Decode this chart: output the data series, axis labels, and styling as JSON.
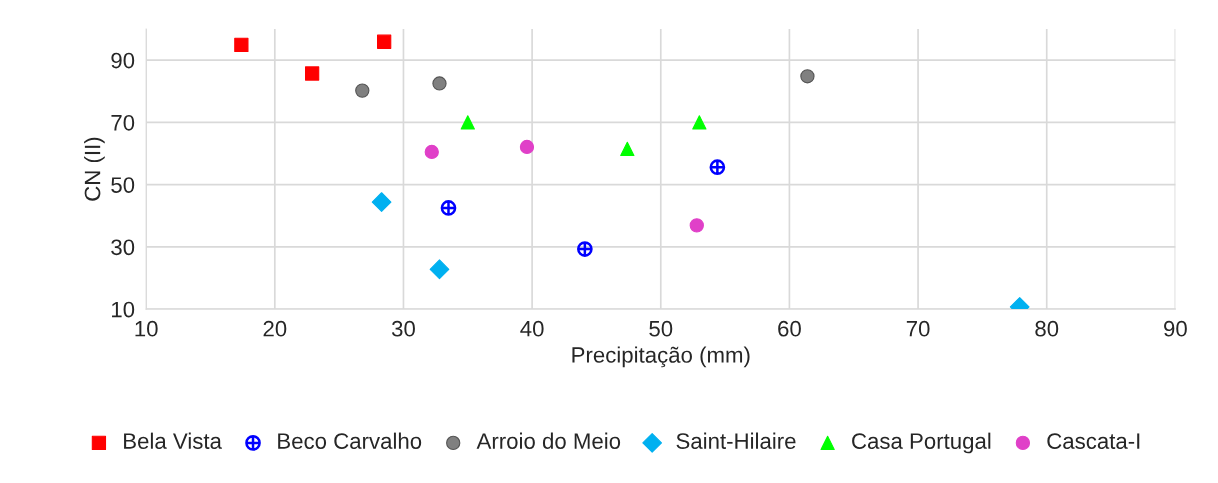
{
  "chart_data": {
    "type": "scatter",
    "xlabel": "Precipitação (mm)",
    "ylabel": "CN (II)",
    "xlim": [
      10,
      90
    ],
    "xticks": [
      10,
      20,
      30,
      40,
      50,
      60,
      70,
      80,
      90
    ],
    "ylim": [
      10,
      100
    ],
    "yticks": [
      10,
      30,
      50,
      70,
      90
    ],
    "grid": true,
    "legend": "bottom",
    "series": [
      {
        "name": "Bela Vista",
        "color": "#ff0000",
        "marker": "square",
        "x": [
          17.4,
          22.9,
          28.5
        ],
        "values": [
          94.9,
          85.7,
          95.9
        ]
      },
      {
        "name": "Beco Carvalho",
        "color": "#0000ff",
        "marker": "cross",
        "x": [
          33.5,
          44.1,
          54.4
        ],
        "values": [
          42.5,
          29.3,
          55.6
        ]
      },
      {
        "name": "Arroio do Meio",
        "color": "#808080",
        "marker": "circle",
        "x": [
          26.8,
          32.8,
          61.4
        ],
        "values": [
          80.2,
          82.5,
          84.8
        ]
      },
      {
        "name": "Saint-Hilaire",
        "color": "#00b0f0",
        "marker": "diamond",
        "x": [
          28.3,
          32.8,
          77.9
        ],
        "values": [
          44.4,
          22.8,
          10.7
        ]
      },
      {
        "name": "Casa Portugal",
        "color": "#00ff00",
        "marker": "triangle",
        "x": [
          35.0,
          47.4,
          53.0
        ],
        "values": [
          70.0,
          61.5,
          70.0
        ]
      },
      {
        "name": "Cascata-I",
        "color": "#e040c8",
        "marker": "circle",
        "x": [
          32.2,
          39.6,
          52.8
        ],
        "values": [
          60.5,
          62.1,
          36.9
        ]
      }
    ]
  }
}
